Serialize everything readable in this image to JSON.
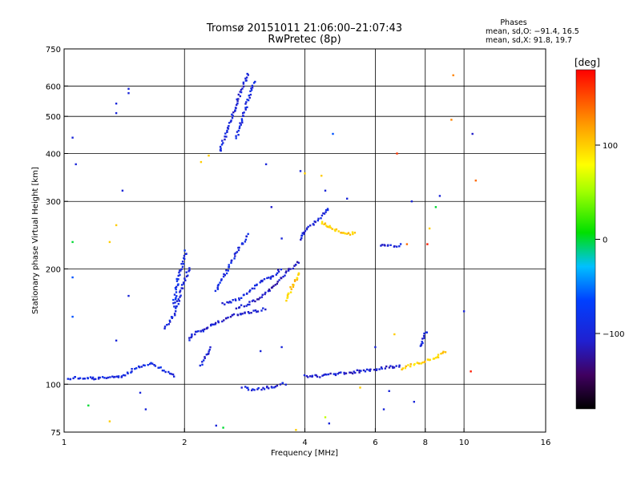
{
  "chart_data": {
    "type": "scatter",
    "title": "Tromsø 20151011 21:06:00–21:07:43",
    "subtitle": "RwPretec (8p)",
    "xlabel": "Frequency [MHz]",
    "ylabel": "Stationary phase Virtual Height [km]",
    "x_scale": "log",
    "y_scale": "log",
    "xlim": [
      1,
      16
    ],
    "ylim": [
      75,
      750
    ],
    "x_ticks": [
      1,
      2,
      4,
      6,
      8,
      10,
      16
    ],
    "x_tick_labels": [
      "1",
      "2",
      "4",
      "6",
      "8",
      "10",
      "16"
    ],
    "y_ticks": [
      75,
      100,
      200,
      300,
      400,
      500,
      600,
      750
    ],
    "y_tick_labels": [
      "75",
      "100",
      "200",
      "300",
      "400",
      "500",
      "600",
      "750"
    ],
    "x_grid": [
      2,
      4,
      6,
      8,
      10
    ],
    "y_grid": [
      100,
      200,
      300,
      400,
      500,
      600
    ],
    "legend": {
      "heading": "Phases",
      "line1": "mean, sd,O: −91.4, 16.5",
      "line2": "mean, sd,X:  91.8, 19.7",
      "placement": "top-right"
    },
    "colorbar": {
      "label": "[deg]",
      "ticks": [
        100,
        0,
        -100
      ],
      "tick_labels": [
        "100",
        "0",
        "−100"
      ],
      "range": [
        -180,
        180
      ]
    },
    "traces": [
      {
        "phase": -95,
        "points": [
          [
            1.02,
            103
          ],
          [
            1.05,
            104
          ],
          [
            1.08,
            104
          ],
          [
            1.12,
            103
          ],
          [
            1.16,
            104
          ],
          [
            1.2,
            103
          ],
          [
            1.25,
            104
          ],
          [
            1.3,
            104
          ],
          [
            1.35,
            105
          ],
          [
            1.4,
            105
          ],
          [
            1.45,
            107
          ],
          [
            1.5,
            110
          ],
          [
            1.55,
            111
          ],
          [
            1.6,
            112
          ],
          [
            1.65,
            113
          ],
          [
            1.7,
            111
          ],
          [
            1.75,
            110
          ],
          [
            1.8,
            108
          ],
          [
            1.85,
            106
          ],
          [
            1.9,
            104
          ]
        ]
      },
      {
        "phase": -100,
        "points": [
          [
            1.78,
            140
          ],
          [
            1.83,
            145
          ],
          [
            1.88,
            152
          ],
          [
            1.92,
            162
          ],
          [
            1.96,
            175
          ],
          [
            2.0,
            185
          ],
          [
            2.03,
            195
          ],
          [
            2.06,
            203
          ]
        ]
      },
      {
        "phase": -90,
        "points": [
          [
            1.88,
            160
          ],
          [
            1.9,
            172
          ],
          [
            1.92,
            185
          ],
          [
            1.95,
            195
          ],
          [
            1.98,
            205
          ],
          [
            2.0,
            215
          ],
          [
            2.02,
            225
          ]
        ]
      },
      {
        "phase": -105,
        "points": [
          [
            2.05,
            130
          ],
          [
            2.1,
            135
          ],
          [
            2.15,
            137
          ],
          [
            2.2,
            138
          ],
          [
            2.25,
            139
          ],
          [
            2.3,
            141
          ],
          [
            2.35,
            143
          ],
          [
            2.4,
            145
          ],
          [
            2.5,
            147
          ],
          [
            2.6,
            150
          ],
          [
            2.7,
            152
          ],
          [
            2.8,
            153
          ],
          [
            2.9,
            154
          ],
          [
            3.0,
            155
          ],
          [
            3.1,
            156
          ],
          [
            3.2,
            158
          ]
        ]
      },
      {
        "phase": -100,
        "points": [
          [
            2.5,
            162
          ],
          [
            2.6,
            164
          ],
          [
            2.7,
            166
          ],
          [
            2.8,
            170
          ],
          [
            2.9,
            175
          ],
          [
            3.0,
            180
          ],
          [
            3.1,
            185
          ],
          [
            3.2,
            188
          ],
          [
            3.3,
            190
          ],
          [
            3.4,
            195
          ],
          [
            3.5,
            200
          ]
        ]
      },
      {
        "phase": -110,
        "points": [
          [
            2.7,
            158
          ],
          [
            2.9,
            162
          ],
          [
            3.1,
            168
          ],
          [
            3.3,
            178
          ],
          [
            3.5,
            190
          ],
          [
            3.7,
            200
          ],
          [
            3.9,
            210
          ]
        ]
      },
      {
        "phase": -95,
        "points": [
          [
            2.4,
            175
          ],
          [
            2.5,
            190
          ],
          [
            2.6,
            205
          ],
          [
            2.7,
            220
          ],
          [
            2.8,
            235
          ],
          [
            2.9,
            248
          ]
        ]
      },
      {
        "phase": -100,
        "points": [
          [
            2.2,
            112
          ],
          [
            2.25,
            118
          ],
          [
            2.3,
            122
          ],
          [
            2.35,
            125
          ]
        ]
      },
      {
        "phase": -100,
        "points": [
          [
            2.45,
            405
          ],
          [
            2.5,
            430
          ],
          [
            2.55,
            455
          ],
          [
            2.6,
            480
          ],
          [
            2.65,
            510
          ],
          [
            2.7,
            540
          ],
          [
            2.75,
            570
          ],
          [
            2.8,
            600
          ],
          [
            2.85,
            630
          ],
          [
            2.9,
            650
          ]
        ]
      },
      {
        "phase": -95,
        "points": [
          [
            2.7,
            440
          ],
          [
            2.75,
            470
          ],
          [
            2.8,
            500
          ],
          [
            2.85,
            530
          ],
          [
            2.9,
            560
          ],
          [
            2.95,
            590
          ],
          [
            3.0,
            620
          ]
        ]
      },
      {
        "phase": -100,
        "points": [
          [
            2.8,
            98
          ],
          [
            2.9,
            97
          ],
          [
            3.0,
            97
          ],
          [
            3.1,
            97
          ],
          [
            3.2,
            98
          ],
          [
            3.3,
            98
          ],
          [
            3.4,
            99
          ],
          [
            3.5,
            100
          ],
          [
            3.6,
            100
          ]
        ]
      },
      {
        "phase": 100,
        "points": [
          [
            3.6,
            165
          ],
          [
            3.65,
            172
          ],
          [
            3.7,
            178
          ],
          [
            3.75,
            183
          ],
          [
            3.8,
            188
          ],
          [
            3.85,
            192
          ],
          [
            3.9,
            197
          ]
        ]
      },
      {
        "phase": -100,
        "points": [
          [
            3.9,
            238
          ],
          [
            3.95,
            245
          ],
          [
            4.0,
            250
          ],
          [
            4.05,
            255
          ],
          [
            4.1,
            258
          ],
          [
            4.2,
            262
          ],
          [
            4.3,
            268
          ],
          [
            4.4,
            275
          ],
          [
            4.5,
            282
          ],
          [
            4.6,
            290
          ]
        ]
      },
      {
        "phase": 100,
        "points": [
          [
            4.4,
            265
          ],
          [
            4.5,
            262
          ],
          [
            4.6,
            258
          ],
          [
            4.7,
            255
          ],
          [
            4.8,
            252
          ],
          [
            4.9,
            250
          ],
          [
            5.0,
            248
          ],
          [
            5.2,
            247
          ],
          [
            5.4,
            248
          ]
        ]
      },
      {
        "phase": -105,
        "points": [
          [
            4.0,
            105
          ],
          [
            4.2,
            105
          ],
          [
            4.4,
            105
          ],
          [
            4.6,
            106
          ],
          [
            4.8,
            106
          ],
          [
            5.0,
            107
          ],
          [
            5.2,
            107
          ],
          [
            5.4,
            108
          ],
          [
            5.6,
            108
          ],
          [
            5.8,
            109
          ],
          [
            6.0,
            109
          ],
          [
            6.2,
            110
          ],
          [
            6.4,
            111
          ],
          [
            6.6,
            111
          ],
          [
            6.8,
            111
          ],
          [
            7.0,
            112
          ]
        ]
      },
      {
        "phase": 100,
        "points": [
          [
            7.0,
            110
          ],
          [
            7.2,
            111
          ],
          [
            7.4,
            112
          ],
          [
            7.6,
            113
          ],
          [
            7.8,
            114
          ],
          [
            8.0,
            115
          ],
          [
            8.2,
            116
          ],
          [
            8.4,
            117
          ],
          [
            8.6,
            118
          ],
          [
            8.8,
            120
          ],
          [
            9.0,
            122
          ]
        ]
      },
      {
        "phase": -100,
        "points": [
          [
            7.8,
            125
          ],
          [
            7.9,
            130
          ],
          [
            8.0,
            135
          ],
          [
            8.1,
            138
          ]
        ]
      },
      {
        "phase": -100,
        "points": [
          [
            6.2,
            230
          ],
          [
            6.5,
            230
          ],
          [
            6.8,
            230
          ],
          [
            7.0,
            232
          ]
        ]
      }
    ],
    "isolated": [
      {
        "x": 1.05,
        "y": 440,
        "phase": -100
      },
      {
        "x": 1.07,
        "y": 375,
        "phase": -100
      },
      {
        "x": 1.45,
        "y": 590,
        "phase": -100
      },
      {
        "x": 1.45,
        "y": 575,
        "phase": -100
      },
      {
        "x": 1.35,
        "y": 540,
        "phase": -100
      },
      {
        "x": 1.35,
        "y": 510,
        "phase": -100
      },
      {
        "x": 1.4,
        "y": 320,
        "phase": -100
      },
      {
        "x": 1.35,
        "y": 260,
        "phase": 100
      },
      {
        "x": 1.3,
        "y": 235,
        "phase": 100
      },
      {
        "x": 1.05,
        "y": 235,
        "phase": 0
      },
      {
        "x": 1.05,
        "y": 190,
        "phase": -60
      },
      {
        "x": 1.05,
        "y": 150,
        "phase": -60
      },
      {
        "x": 1.45,
        "y": 170,
        "phase": -100
      },
      {
        "x": 1.35,
        "y": 130,
        "phase": -100
      },
      {
        "x": 1.15,
        "y": 88,
        "phase": 0
      },
      {
        "x": 1.3,
        "y": 80,
        "phase": 100
      },
      {
        "x": 1.55,
        "y": 95,
        "phase": -100
      },
      {
        "x": 1.6,
        "y": 86,
        "phase": -100
      },
      {
        "x": 2.2,
        "y": 380,
        "phase": 100
      },
      {
        "x": 2.3,
        "y": 395,
        "phase": 100
      },
      {
        "x": 3.2,
        "y": 375,
        "phase": -100
      },
      {
        "x": 3.3,
        "y": 290,
        "phase": -110
      },
      {
        "x": 3.5,
        "y": 240,
        "phase": -100
      },
      {
        "x": 3.9,
        "y": 360,
        "phase": -100
      },
      {
        "x": 4.0,
        "y": 355,
        "phase": 100
      },
      {
        "x": 4.4,
        "y": 350,
        "phase": 100
      },
      {
        "x": 4.5,
        "y": 320,
        "phase": -100
      },
      {
        "x": 4.7,
        "y": 450,
        "phase": -60
      },
      {
        "x": 5.1,
        "y": 305,
        "phase": -100
      },
      {
        "x": 6.8,
        "y": 400,
        "phase": 160
      },
      {
        "x": 7.4,
        "y": 300,
        "phase": -100
      },
      {
        "x": 8.2,
        "y": 255,
        "phase": 100
      },
      {
        "x": 8.5,
        "y": 290,
        "phase": 0
      },
      {
        "x": 8.7,
        "y": 310,
        "phase": -100
      },
      {
        "x": 9.4,
        "y": 640,
        "phase": 130
      },
      {
        "x": 9.3,
        "y": 490,
        "phase": 130
      },
      {
        "x": 10.5,
        "y": 450,
        "phase": -110
      },
      {
        "x": 10.7,
        "y": 340,
        "phase": 140
      },
      {
        "x": 10.0,
        "y": 155,
        "phase": -100
      },
      {
        "x": 10.4,
        "y": 108,
        "phase": 170
      },
      {
        "x": 8.1,
        "y": 232,
        "phase": 170
      },
      {
        "x": 7.2,
        "y": 232,
        "phase": 140
      },
      {
        "x": 4.6,
        "y": 79,
        "phase": -100
      },
      {
        "x": 4.5,
        "y": 82,
        "phase": 60
      },
      {
        "x": 6.3,
        "y": 86,
        "phase": -100
      },
      {
        "x": 7.5,
        "y": 90,
        "phase": -100
      },
      {
        "x": 2.4,
        "y": 78,
        "phase": -100
      },
      {
        "x": 2.5,
        "y": 77,
        "phase": 0
      },
      {
        "x": 3.8,
        "y": 76,
        "phase": 100
      },
      {
        "x": 3.5,
        "y": 125,
        "phase": -100
      },
      {
        "x": 3.1,
        "y": 122,
        "phase": -100
      },
      {
        "x": 6.7,
        "y": 135,
        "phase": 100
      },
      {
        "x": 6.0,
        "y": 125,
        "phase": -100
      },
      {
        "x": 5.5,
        "y": 98,
        "phase": 100
      },
      {
        "x": 6.5,
        "y": 96,
        "phase": -100
      }
    ]
  }
}
